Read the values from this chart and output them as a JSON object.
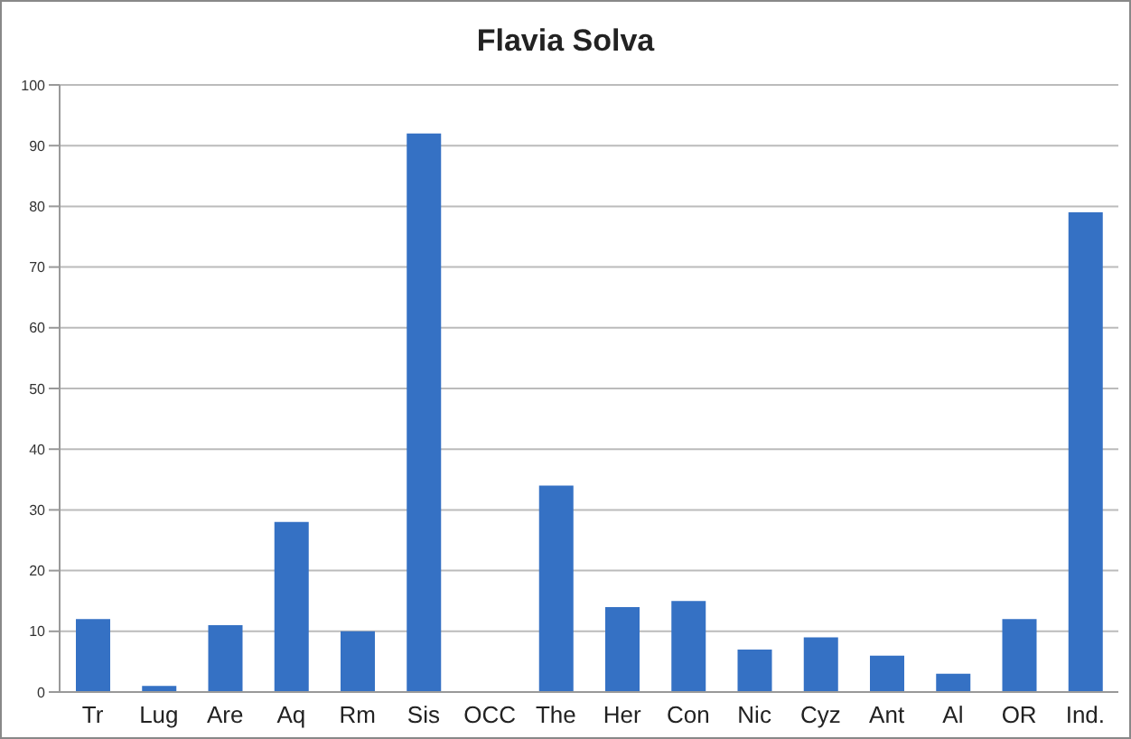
{
  "chart_data": {
    "type": "bar",
    "title": "Flavia Solva",
    "categories": [
      "Tr",
      "Lug",
      "Are",
      "Aq",
      "Rm",
      "Sis",
      "OCC",
      "The",
      "Her",
      "Con",
      "Nic",
      "Cyz",
      "Ant",
      "Al",
      "OR",
      "Ind."
    ],
    "values": [
      12,
      1,
      11,
      28,
      10,
      92,
      0,
      34,
      14,
      15,
      7,
      9,
      6,
      3,
      12,
      79
    ],
    "color": "#3571c4",
    "ylim": [
      0,
      100
    ],
    "yticks": [
      0,
      10,
      20,
      30,
      40,
      50,
      60,
      70,
      80,
      90,
      100
    ],
    "grid": "y"
  }
}
